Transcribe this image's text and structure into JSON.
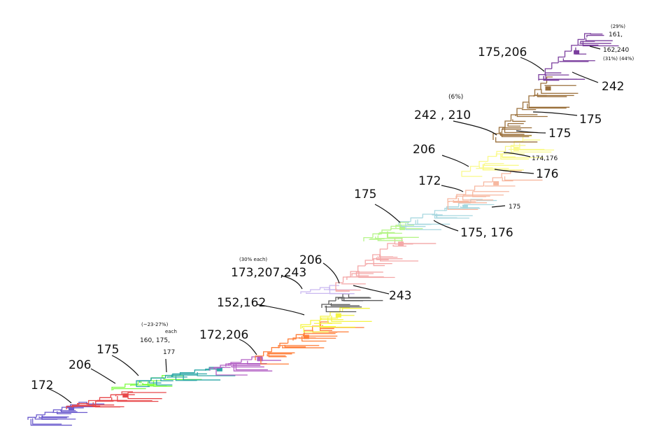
{
  "colors": {
    "clade1": "#6a5acd",
    "clade2": "#e8474a",
    "clade3": "#7cfc3f",
    "clade4": "#2aa6a6",
    "clade5": "#b25fc4",
    "clade6": "#ff7f3a",
    "clade7": "#f5f542",
    "clade8": "#5a5a5a",
    "clade9": "#c9b8f0",
    "clade10": "#f4a7a7",
    "clade11": "#b6f58a",
    "clade12": "#a8d8e0",
    "clade13": "#f7b8a0",
    "clade14": "#fafa8c",
    "clade15": "#9a6f3a",
    "clade16": "#7b3f9e",
    "annotation": "#111111"
  },
  "labels": {
    "l172a": "172",
    "l206a": "206",
    "l175a": "175",
    "l160": "160, 175,",
    "l177": "177",
    "l160note": "(~23-27%)",
    "l160each": "each",
    "l172_206": "172,206",
    "l152_162": "152,162",
    "l173_207": "173,207,243",
    "l173note": "(30% each)",
    "l206b": "206",
    "l243": "243",
    "l175b": "175",
    "l175_176a": "175, 176",
    "l175c": "175",
    "l172b": "172",
    "l206c": "206",
    "l176a": "176",
    "l174_176": "174,176",
    "l242_210": "242 , 210",
    "l242note": "(6%)",
    "l175d": "175",
    "l175e": "175",
    "l175_206": "175,206",
    "l242": "242",
    "ltop1note": "(29%)",
    "ltop1": "161,",
    "ltop2": "162,240",
    "ltop2note": "(31%) (44%)"
  }
}
